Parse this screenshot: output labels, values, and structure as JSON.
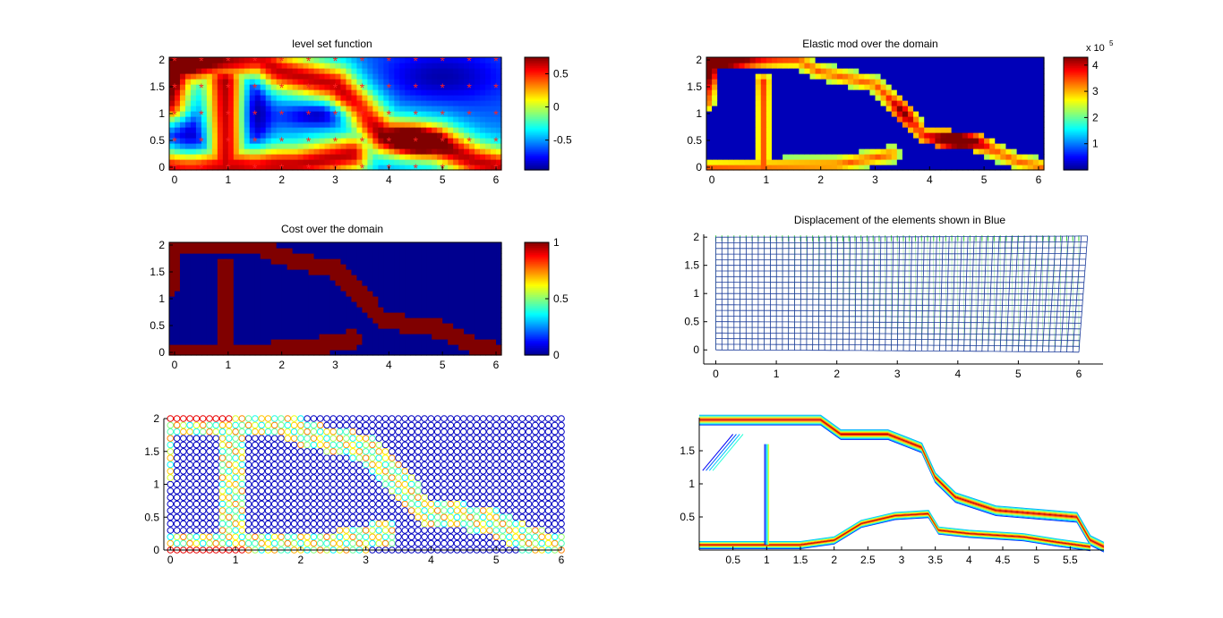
{
  "colors": {
    "jet": [
      "#00008f",
      "#0000ff",
      "#00ffff",
      "#ffff00",
      "#ff0000",
      "#800000"
    ],
    "marker": "#ff2020",
    "mesh": "#1a3a9a",
    "arrow": "#33cc33"
  },
  "chart_data": [
    {
      "id": "level-set",
      "type": "heatmap",
      "title": "level set function",
      "xlim": [
        -0.1,
        6.1
      ],
      "ylim": [
        -0.05,
        2.05
      ],
      "xticks": [
        "0",
        "1",
        "2",
        "3",
        "4",
        "5",
        "6"
      ],
      "yticks": [
        "0",
        "0.5",
        "1",
        "1.5",
        "2"
      ],
      "colorbar": {
        "min": -0.95,
        "max": 0.75,
        "ticks": [
          "0.5",
          "0",
          "-0.5"
        ],
        "tick_values": [
          0.5,
          0,
          -0.5
        ]
      },
      "markers": {
        "x_step": 0.5,
        "y_step": 0.5,
        "symbol": "*"
      }
    },
    {
      "id": "elastic-mod",
      "type": "heatmap",
      "title": "Elastic mod over the domain",
      "xlim": [
        -0.1,
        6.1
      ],
      "ylim": [
        -0.05,
        2.05
      ],
      "xticks": [
        "0",
        "1",
        "2",
        "3",
        "4",
        "5",
        "6"
      ],
      "yticks": [
        "0",
        "0.5",
        "1",
        "1.5",
        "2"
      ],
      "colorbar": {
        "min": 0,
        "max": 4.3,
        "ticks": [
          "4",
          "3",
          "2",
          "1"
        ],
        "tick_values": [
          4,
          3,
          2,
          1
        ],
        "exponent_base": "x 10",
        "exponent": "5"
      }
    },
    {
      "id": "cost",
      "type": "heatmap",
      "title": "Cost over the domain",
      "xlim": [
        -0.1,
        6.1
      ],
      "ylim": [
        -0.05,
        2.05
      ],
      "xticks": [
        "0",
        "1",
        "2",
        "3",
        "4",
        "5",
        "6"
      ],
      "yticks": [
        "0",
        "0.5",
        "1",
        "1.5",
        "2"
      ],
      "colorbar": {
        "min": 0,
        "max": 1,
        "ticks": [
          "1",
          "0.5",
          "0"
        ],
        "tick_values": [
          1,
          0.5,
          0
        ]
      }
    },
    {
      "id": "displacement",
      "type": "mesh",
      "title": "Displacement of the elements shown in Blue",
      "xlim": [
        -0.2,
        6.4
      ],
      "ylim": [
        -0.25,
        2.05
      ],
      "xticks": [
        "0",
        "1",
        "2",
        "3",
        "4",
        "5",
        "6"
      ],
      "yticks": [
        "0",
        "0.5",
        "1",
        "1.5",
        "2"
      ],
      "mesh": {
        "nx": 60,
        "ny": 20,
        "width": 6,
        "height": 2
      }
    },
    {
      "id": "circles",
      "type": "scatter",
      "xlim": [
        -0.1,
        6
      ],
      "ylim": [
        0,
        2
      ],
      "xticks": [
        "0",
        "1",
        "2",
        "3",
        "4",
        "5",
        "6"
      ],
      "yticks": [
        "0",
        "0.5",
        "1",
        "1.5",
        "2"
      ],
      "grid": {
        "nx": 61,
        "ny": 21
      }
    },
    {
      "id": "contour",
      "type": "contour",
      "xlim": [
        0,
        6
      ],
      "ylim": [
        0,
        2
      ],
      "xticks": [
        "0.5",
        "1",
        "1.5",
        "2",
        "2.5",
        "3",
        "3.5",
        "4",
        "4.5",
        "5",
        "5.5"
      ],
      "yticks": [
        "0.5",
        "1",
        "1.5"
      ]
    }
  ]
}
